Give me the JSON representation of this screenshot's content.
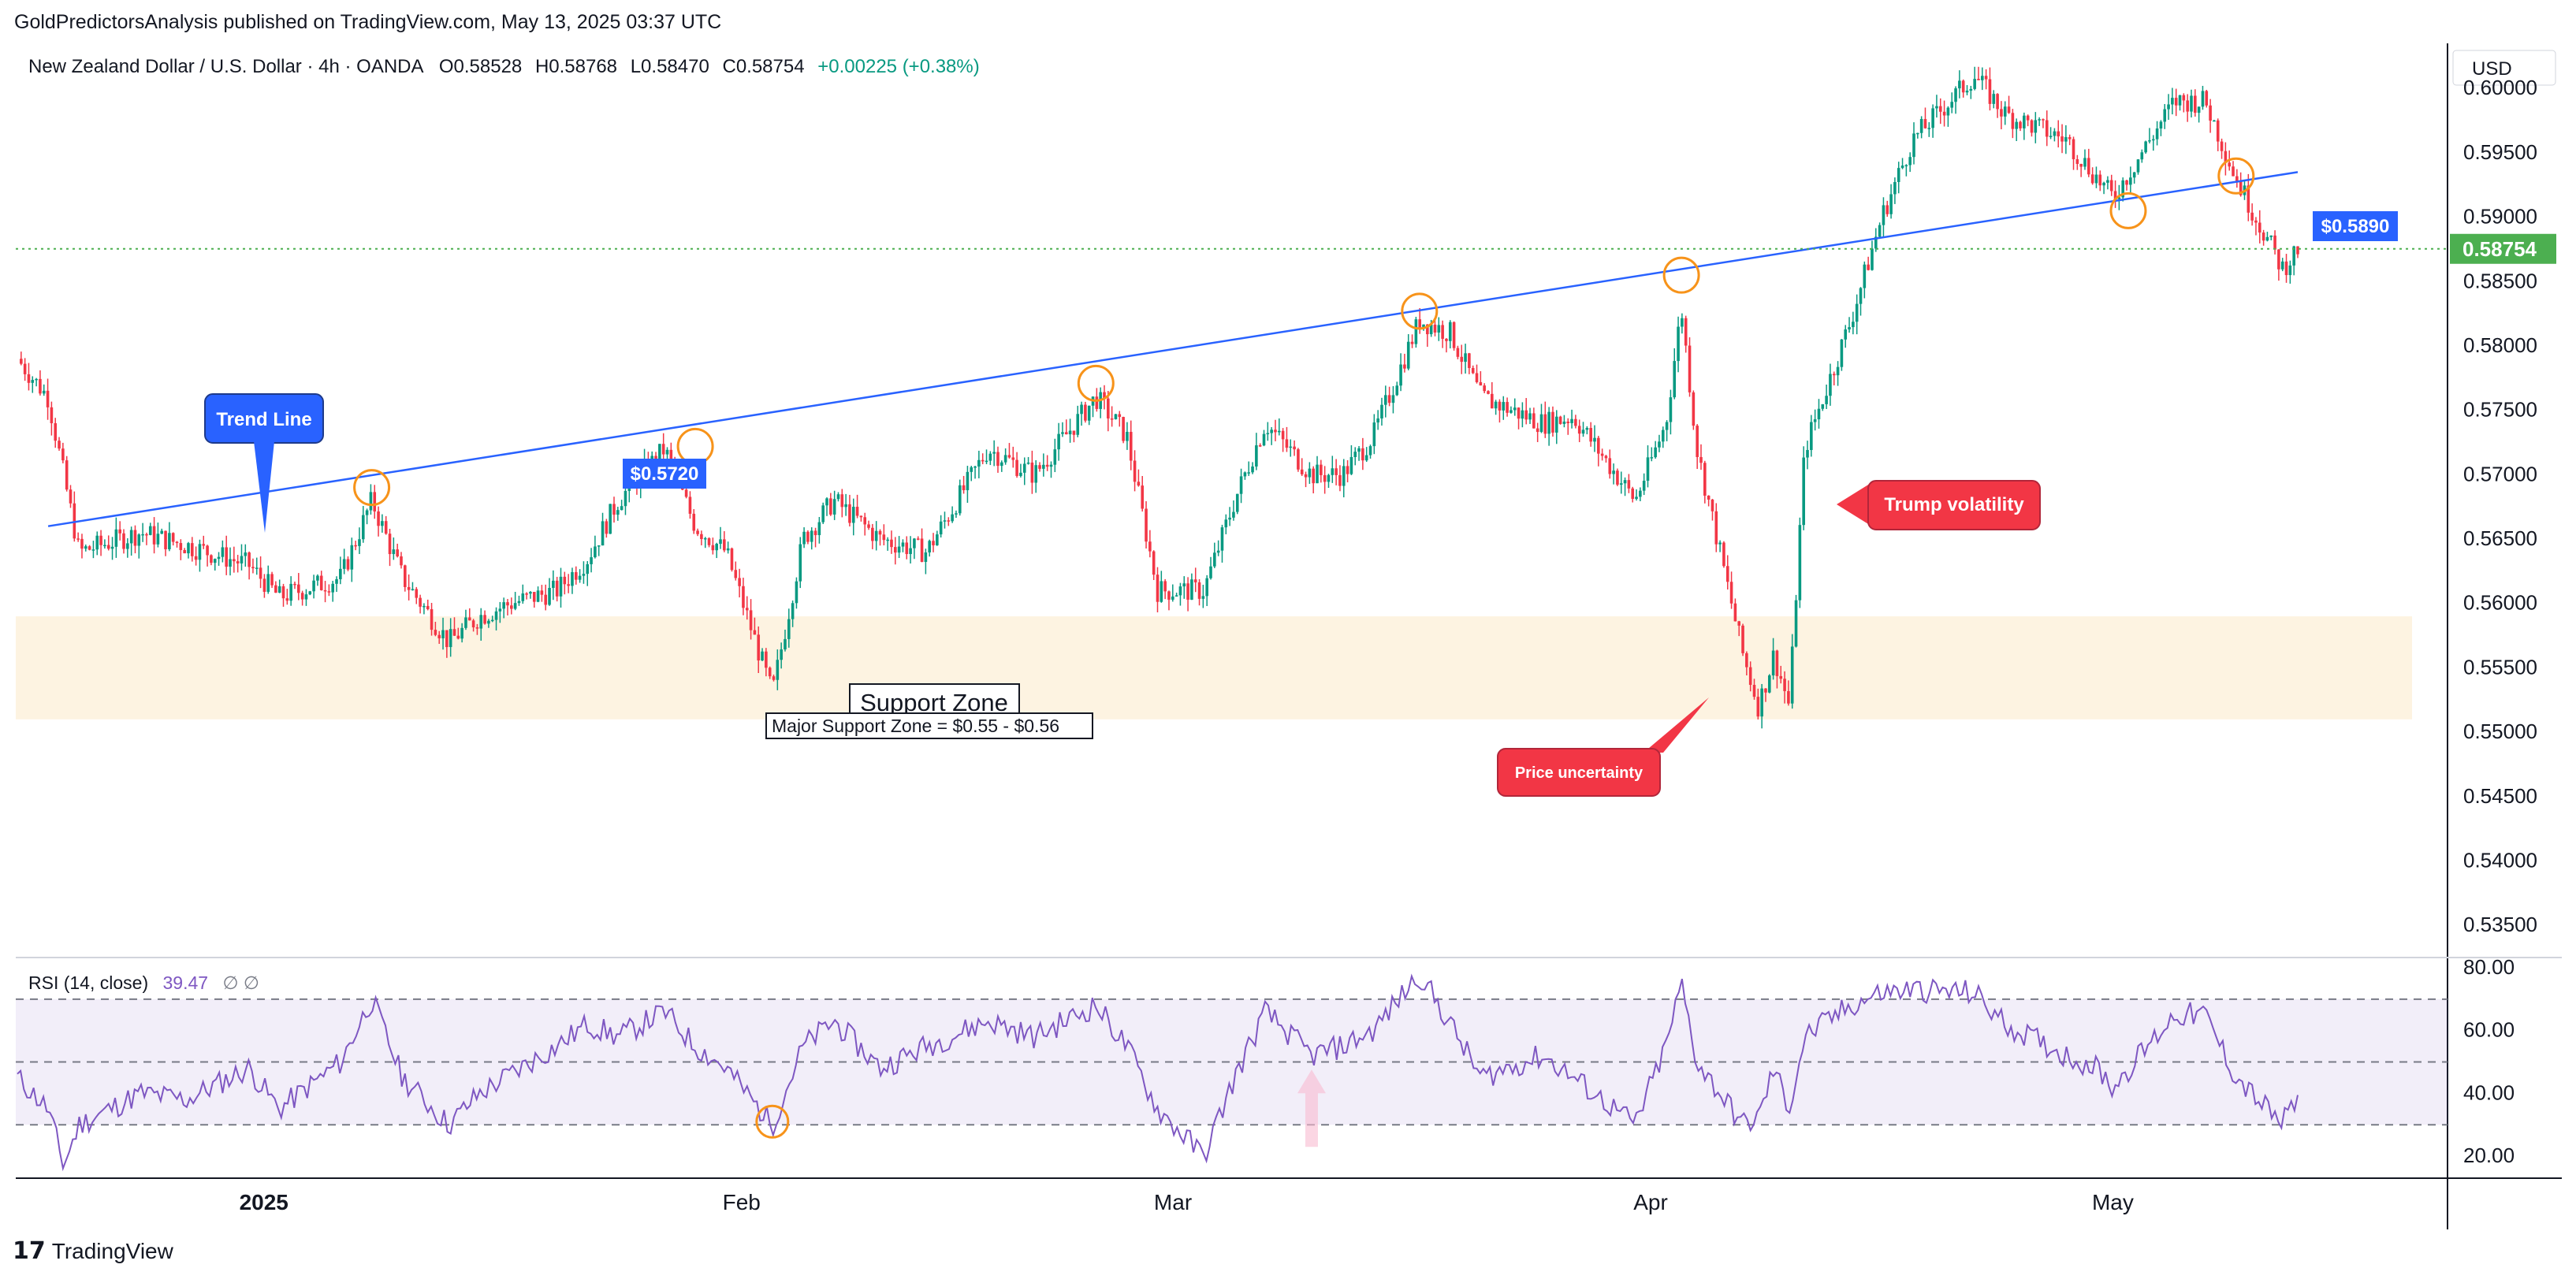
{
  "header": {
    "publisher": "GoldPredictorsAnalysis published on TradingView.com, May 13, 2025 03:37 UTC"
  },
  "legend": {
    "symbol": "New Zealand Dollar / U.S. Dollar · 4h · OANDA",
    "open": "O0.58528",
    "high": "H0.58768",
    "low": "L0.58470",
    "close": "C0.58754",
    "change": "+0.00225 (+0.38%)"
  },
  "currency": "USD",
  "rsi_legend": {
    "name": "RSI (14, close)",
    "value": "39.47",
    "extra": "∅ ∅"
  },
  "footer": {
    "logo": "17",
    "name": "TradingView"
  },
  "annotations": {
    "trend_line": "Trend Line",
    "label_1": "$0.5720",
    "label_2": "$0.5890",
    "support_title": "Support Zone",
    "support_detail": "Major Support Zone = $0.55 - $0.56",
    "trump": "Trump volatility",
    "uncertainty": "Price uncertainty"
  },
  "colors": {
    "up": "#089981",
    "down": "#f23645",
    "trend": "#2962ff",
    "rsi": "#7e57c2",
    "support_zone": "#fdf3e1",
    "highlight": "#f7931a",
    "last_price": "#4caf50"
  },
  "chart_data": [
    {
      "type": "candlestick",
      "title": "New Zealand Dollar / U.S. Dollar · 4h · OANDA",
      "y_tick_labels": [
        "0.60000",
        "0.59500",
        "0.59000",
        "0.58500",
        "0.58000",
        "0.57500",
        "0.57000",
        "0.56500",
        "0.56000",
        "0.55500",
        "0.55000",
        "0.54500",
        "0.54000",
        "0.53500"
      ],
      "ylim": [
        0.5325,
        0.6035
      ],
      "x_tick_labels": [
        "2025",
        "Feb",
        "Mar",
        "Apr",
        "May"
      ],
      "last_price": "0.58754",
      "path_points": [
        [
          "2024-12-16",
          0.579
        ],
        [
          "2024-12-18",
          0.576
        ],
        [
          "2024-12-20",
          0.564
        ],
        [
          "2024-12-24",
          0.5655
        ],
        [
          "2024-12-27",
          0.5645
        ],
        [
          "2024-12-31",
          0.563
        ],
        [
          "2025-01-02",
          0.5605
        ],
        [
          "2025-01-06",
          0.562
        ],
        [
          "2025-01-08",
          0.568
        ],
        [
          "2025-01-10",
          0.562
        ],
        [
          "2025-01-13",
          0.557
        ],
        [
          "2025-01-15",
          0.559
        ],
        [
          "2025-01-17",
          0.56
        ],
        [
          "2025-01-20",
          0.561
        ],
        [
          "2025-01-22",
          0.5635
        ],
        [
          "2025-01-24",
          0.568
        ],
        [
          "2025-01-27",
          0.572
        ],
        [
          "2025-01-29",
          0.566
        ],
        [
          "2025-01-31",
          0.564
        ],
        [
          "2025-02-03",
          0.553
        ],
        [
          "2025-02-05",
          0.565
        ],
        [
          "2025-02-07",
          0.568
        ],
        [
          "2025-02-10",
          0.565
        ],
        [
          "2025-02-13",
          0.564
        ],
        [
          "2025-02-17",
          0.572
        ],
        [
          "2025-02-20",
          0.57
        ],
        [
          "2025-02-24",
          0.576
        ],
        [
          "2025-02-26",
          0.573
        ],
        [
          "2025-02-28",
          0.561
        ],
        [
          "2025-03-03",
          0.561
        ],
        [
          "2025-03-05",
          0.568
        ],
        [
          "2025-03-07",
          0.574
        ],
        [
          "2025-03-10",
          0.57
        ],
        [
          "2025-03-12",
          0.57
        ],
        [
          "2025-03-14",
          0.573
        ],
        [
          "2025-03-17",
          0.582
        ],
        [
          "2025-03-19",
          0.581
        ],
        [
          "2025-03-21",
          0.576
        ],
        [
          "2025-03-25",
          0.574
        ],
        [
          "2025-03-27",
          0.5745
        ],
        [
          "2025-03-31",
          0.568
        ],
        [
          "2025-04-02",
          0.574
        ],
        [
          "2025-04-03",
          0.583
        ],
        [
          "2025-04-04",
          0.572
        ],
        [
          "2025-04-07",
          0.556
        ],
        [
          "2025-04-08",
          0.552
        ],
        [
          "2025-04-09",
          0.556
        ],
        [
          "2025-04-10",
          0.552
        ],
        [
          "2025-04-11",
          0.572
        ],
        [
          "2025-04-14",
          0.582
        ],
        [
          "2025-04-16",
          0.59
        ],
        [
          "2025-04-18",
          0.596
        ],
        [
          "2025-04-22",
          0.601
        ],
        [
          "2025-04-24",
          0.598
        ],
        [
          "2025-04-28",
          0.596
        ],
        [
          "2025-04-30",
          0.593
        ],
        [
          "2025-05-01",
          0.5915
        ],
        [
          "2025-05-05",
          0.599
        ],
        [
          "2025-05-07",
          0.599
        ],
        [
          "2025-05-09",
          0.593
        ],
        [
          "2025-05-12",
          0.586
        ],
        [
          "2025-05-13",
          0.5875
        ]
      ],
      "trend_line": [
        [
          "2024-12-18",
          0.566
        ],
        [
          "2025-05-13",
          0.5935
        ]
      ],
      "highlight_circles": [
        [
          "2025-01-08",
          0.569
        ],
        [
          "2025-01-29",
          0.5722
        ],
        [
          "2025-02-24",
          0.5771
        ],
        [
          "2025-03-17",
          0.5827
        ],
        [
          "2025-04-03",
          0.5855
        ],
        [
          "2025-05-02",
          0.5905
        ],
        [
          "2025-05-09",
          0.5932
        ]
      ],
      "support_zone": [
        0.551,
        0.559
      ]
    },
    {
      "type": "line",
      "title": "RSI (14, close)",
      "y_tick_labels": [
        "80.00",
        "60.00",
        "40.00",
        "20.00"
      ],
      "ylim": [
        13,
        82
      ],
      "bands": [
        30,
        50,
        70
      ],
      "last_value": 39.47,
      "path_points": [
        [
          "2024-12-16",
          45
        ],
        [
          "2024-12-18",
          35
        ],
        [
          "2024-12-19",
          17
        ],
        [
          "2024-12-20",
          30
        ],
        [
          "2024-12-24",
          40
        ],
        [
          "2024-12-27",
          38
        ],
        [
          "2024-12-31",
          48
        ],
        [
          "2025-01-02",
          35
        ],
        [
          "2025-01-06",
          50
        ],
        [
          "2025-01-08",
          70
        ],
        [
          "2025-01-10",
          45
        ],
        [
          "2025-01-13",
          30
        ],
        [
          "2025-01-15",
          40
        ],
        [
          "2025-01-20",
          55
        ],
        [
          "2025-01-22",
          62
        ],
        [
          "2025-01-24",
          58
        ],
        [
          "2025-01-27",
          66
        ],
        [
          "2025-01-29",
          55
        ],
        [
          "2025-01-31",
          48
        ],
        [
          "2025-02-03",
          30
        ],
        [
          "2025-02-05",
          55
        ],
        [
          "2025-02-07",
          63
        ],
        [
          "2025-02-10",
          48
        ],
        [
          "2025-02-13",
          55
        ],
        [
          "2025-02-17",
          63
        ],
        [
          "2025-02-20",
          58
        ],
        [
          "2025-02-24",
          68
        ],
        [
          "2025-02-26",
          55
        ],
        [
          "2025-02-28",
          35
        ],
        [
          "2025-03-03",
          20
        ],
        [
          "2025-03-05",
          45
        ],
        [
          "2025-03-07",
          66
        ],
        [
          "2025-03-10",
          52
        ],
        [
          "2025-03-12",
          55
        ],
        [
          "2025-03-14",
          60
        ],
        [
          "2025-03-17",
          78
        ],
        [
          "2025-03-19",
          62
        ],
        [
          "2025-03-21",
          45
        ],
        [
          "2025-03-25",
          52
        ],
        [
          "2025-03-27",
          45
        ],
        [
          "2025-03-31",
          30
        ],
        [
          "2025-04-02",
          55
        ],
        [
          "2025-04-03",
          75
        ],
        [
          "2025-04-04",
          50
        ],
        [
          "2025-04-07",
          30
        ],
        [
          "2025-04-08",
          32
        ],
        [
          "2025-04-09",
          48
        ],
        [
          "2025-04-10",
          35
        ],
        [
          "2025-04-11",
          58
        ],
        [
          "2025-04-14",
          68
        ],
        [
          "2025-04-16",
          72
        ],
        [
          "2025-04-18",
          73
        ],
        [
          "2025-04-22",
          72
        ],
        [
          "2025-04-24",
          62
        ],
        [
          "2025-04-28",
          52
        ],
        [
          "2025-04-30",
          48
        ],
        [
          "2025-05-01",
          42
        ],
        [
          "2025-05-05",
          65
        ],
        [
          "2025-05-07",
          65
        ],
        [
          "2025-05-09",
          45
        ],
        [
          "2025-05-12",
          30
        ],
        [
          "2025-05-13",
          39.47
        ]
      ],
      "highlight_circles": [
        [
          "2025-02-03",
          31
        ]
      ],
      "markers": [
        [
          "2025-03-10",
          "up-arrow"
        ]
      ]
    }
  ]
}
